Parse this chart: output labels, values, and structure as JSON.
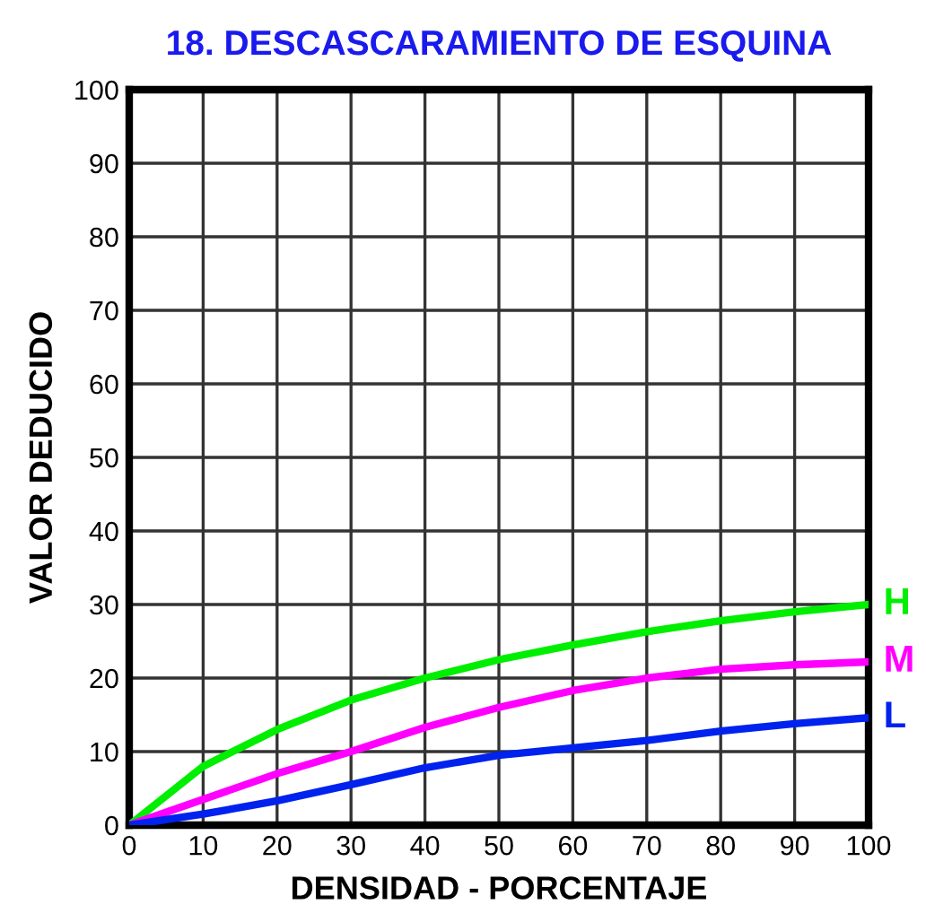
{
  "chart_data": {
    "type": "line",
    "title": "18. DESCASCARAMIENTO DE ESQUINA",
    "xlabel": "DENSIDAD - PORCENTAJE",
    "ylabel": "VALOR DEDUCIDO",
    "x": [
      0,
      10,
      20,
      30,
      40,
      50,
      60,
      70,
      80,
      90,
      100
    ],
    "series": [
      {
        "name": "H",
        "color": "#00ee00",
        "values": [
          0,
          8,
          13,
          17,
          20,
          22.5,
          24.5,
          26.3,
          27.8,
          29,
          30
        ]
      },
      {
        "name": "M",
        "color": "#ff00ff",
        "values": [
          0,
          3.5,
          7,
          10,
          13.3,
          16,
          18.3,
          20,
          21.2,
          21.8,
          22.2
        ]
      },
      {
        "name": "L",
        "color": "#0022ee",
        "values": [
          0,
          1.5,
          3.3,
          5.5,
          7.8,
          9.5,
          10.5,
          11.5,
          12.8,
          13.8,
          14.6
        ]
      }
    ],
    "xlim": [
      0,
      100
    ],
    "ylim": [
      0,
      100
    ],
    "xticks": [
      0,
      10,
      20,
      30,
      40,
      50,
      60,
      70,
      80,
      90,
      100
    ],
    "yticks": [
      0,
      10,
      20,
      30,
      40,
      50,
      60,
      70,
      80,
      90,
      100
    ],
    "grid": true,
    "marker": "none",
    "line_style": "solid",
    "legend": false
  }
}
